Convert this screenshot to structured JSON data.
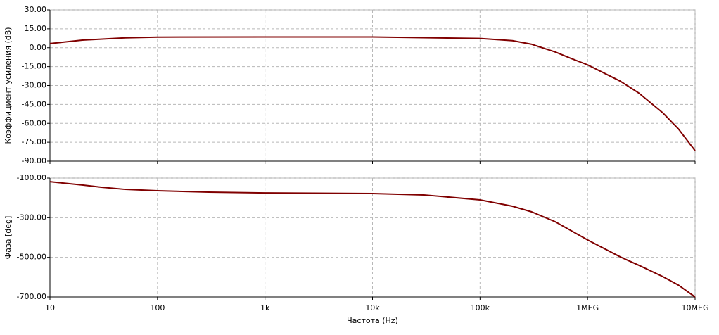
{
  "chart_data": [
    {
      "type": "line",
      "ylabel": "Коэффициент усиления (dB)",
      "color": "#800000",
      "log_x": true,
      "grid": true,
      "x": [
        10,
        20,
        50,
        100,
        1000,
        10000,
        100000,
        200000,
        300000,
        500000,
        700000,
        1000000,
        2000000,
        3000000,
        5000000,
        7000000,
        10000000
      ],
      "values": [
        3.3,
        6,
        7.8,
        8.4,
        8.5,
        8.5,
        7.3,
        5.6,
        2.8,
        -3.4,
        -8.5,
        -13.6,
        -26.4,
        -36,
        -51.6,
        -64.4,
        -81.7
      ],
      "xlim": [
        10,
        10000000
      ],
      "ylim": [
        -90,
        30
      ],
      "yticks": [
        {
          "value": 30,
          "label": "30.00"
        },
        {
          "value": 15,
          "label": "15.00"
        },
        {
          "value": 0,
          "label": "0.00"
        },
        {
          "value": -15,
          "label": "-15.00"
        },
        {
          "value": -30,
          "label": "-30.00"
        },
        {
          "value": -45,
          "label": "-45.00"
        },
        {
          "value": -60,
          "label": "-60.00"
        },
        {
          "value": -75,
          "label": "-75.00"
        },
        {
          "value": -90,
          "label": "-90.00"
        }
      ]
    },
    {
      "type": "line",
      "ylabel": "Фаза [deg]",
      "xlabel": "Частота (Hz)",
      "color": "#800000",
      "log_x": true,
      "grid": true,
      "x": [
        10,
        20,
        30,
        50,
        100,
        300,
        1000,
        10000,
        30000,
        100000,
        200000,
        300000,
        500000,
        1000000,
        2000000,
        3000000,
        5000000,
        7000000,
        10000000
      ],
      "values": [
        -118,
        -135,
        -146,
        -157,
        -164,
        -171,
        -175,
        -178,
        -185,
        -210,
        -242,
        -270,
        -320,
        -412,
        -497,
        -540,
        -597,
        -640,
        -700
      ],
      "xlim": [
        10,
        10000000
      ],
      "ylim": [
        -700,
        -100
      ],
      "yticks": [
        {
          "value": -100,
          "label": "-100.00"
        },
        {
          "value": -300,
          "label": "-300.00"
        },
        {
          "value": -500,
          "label": "-500.00"
        },
        {
          "value": -700,
          "label": "-700.00"
        }
      ],
      "xticks": [
        {
          "value": 10,
          "label": "10"
        },
        {
          "value": 100,
          "label": "100"
        },
        {
          "value": 1000,
          "label": "1k"
        },
        {
          "value": 10000,
          "label": "10k"
        },
        {
          "value": 100000,
          "label": "100k"
        },
        {
          "value": 1000000,
          "label": "1MEG"
        },
        {
          "value": 10000000,
          "label": "10MEG"
        }
      ]
    }
  ]
}
